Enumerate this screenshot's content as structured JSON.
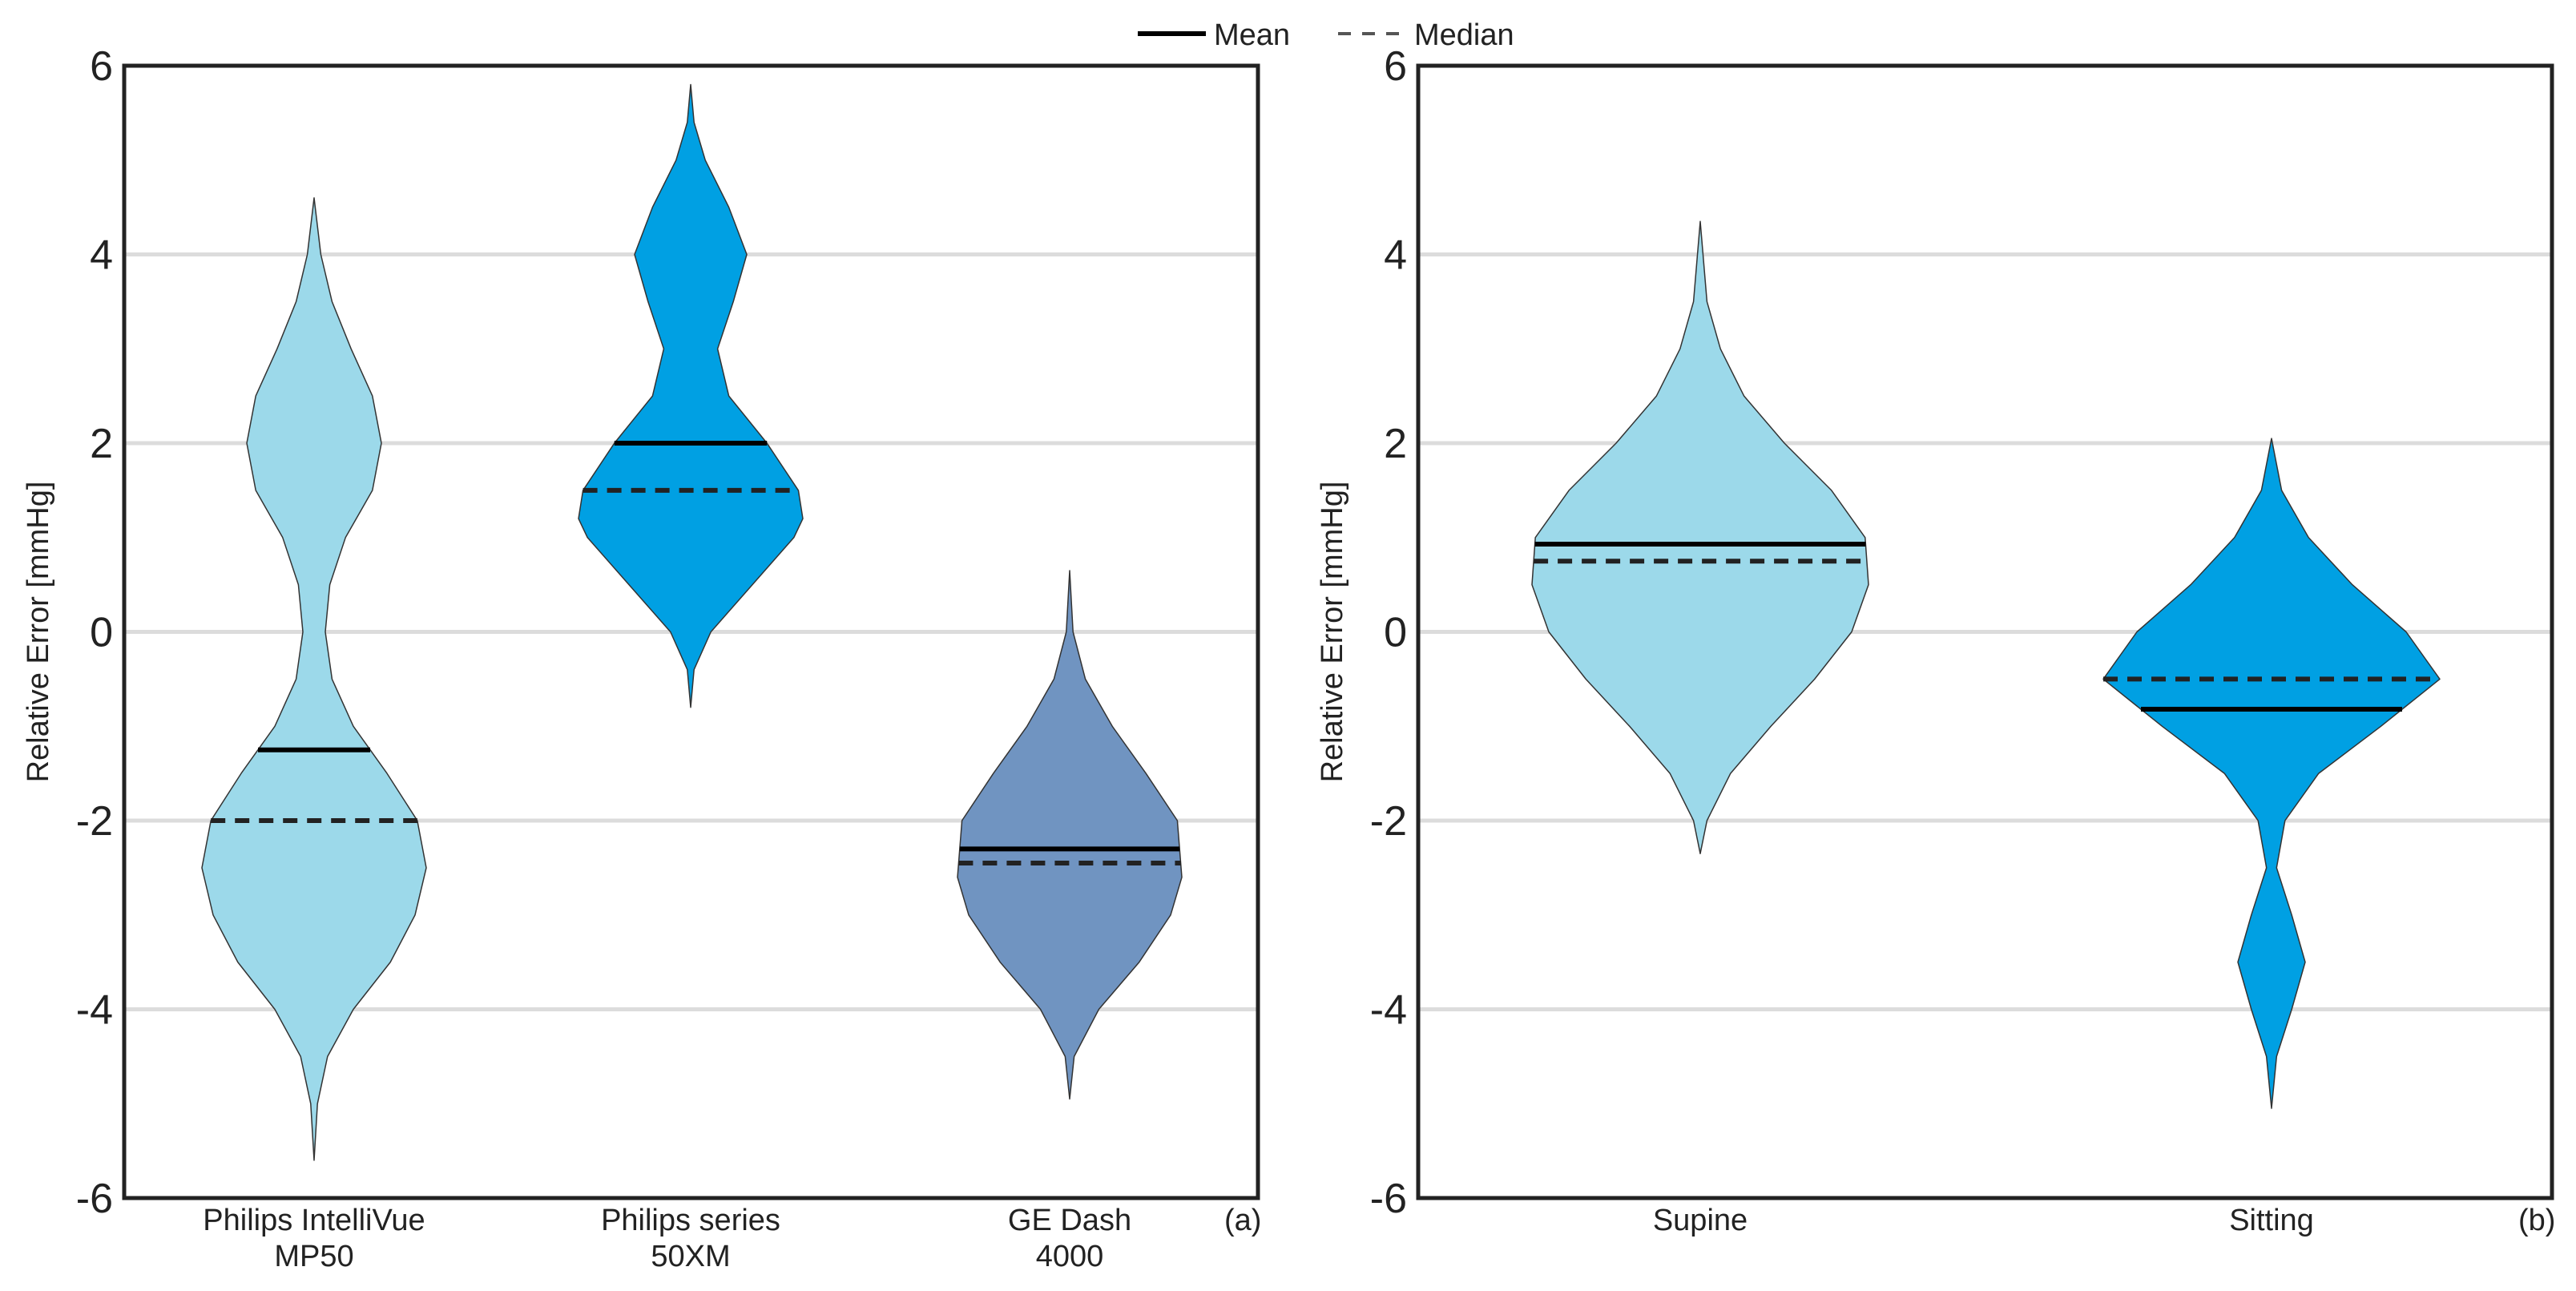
{
  "legend": {
    "mean_label": "Mean",
    "median_label": "Median"
  },
  "chart_data": [
    {
      "type": "violin",
      "panel_label": "(a)",
      "ylabel": "Relative Error [mmHg]",
      "ylim": [
        -6,
        6
      ],
      "yticks": [
        -6,
        -4,
        -2,
        0,
        2,
        4,
        6
      ],
      "grid": true,
      "categories": [
        {
          "lines": [
            "Philips IntelliVue",
            "MP50"
          ],
          "color": "#9cd9ea",
          "range": [
            -5.6,
            4.6
          ],
          "mean": -1.25,
          "median": -2.0,
          "profile": [
            [
              -5.6,
              0.0
            ],
            [
              -5.0,
              0.03
            ],
            [
              -4.5,
              0.12
            ],
            [
              -4.0,
              0.35
            ],
            [
              -3.5,
              0.68
            ],
            [
              -3.0,
              0.9
            ],
            [
              -2.5,
              1.0
            ],
            [
              -2.0,
              0.92
            ],
            [
              -1.5,
              0.65
            ],
            [
              -1.0,
              0.35
            ],
            [
              -0.5,
              0.16
            ],
            [
              0.0,
              0.1
            ],
            [
              0.5,
              0.14
            ],
            [
              1.0,
              0.28
            ],
            [
              1.5,
              0.52
            ],
            [
              2.0,
              0.6
            ],
            [
              2.5,
              0.52
            ],
            [
              3.0,
              0.33
            ],
            [
              3.5,
              0.16
            ],
            [
              4.0,
              0.06
            ],
            [
              4.6,
              0.0
            ]
          ]
        },
        {
          "lines": [
            "Philips series",
            "50XM"
          ],
          "color": "#00a0e3",
          "range": [
            -0.8,
            5.8
          ],
          "mean": 2.0,
          "median": 1.5,
          "profile": [
            [
              -0.8,
              0.0
            ],
            [
              -0.4,
              0.03
            ],
            [
              0.0,
              0.18
            ],
            [
              0.5,
              0.55
            ],
            [
              1.0,
              0.92
            ],
            [
              1.2,
              1.0
            ],
            [
              1.5,
              0.96
            ],
            [
              2.0,
              0.68
            ],
            [
              2.5,
              0.34
            ],
            [
              3.0,
              0.24
            ],
            [
              3.5,
              0.38
            ],
            [
              4.0,
              0.5
            ],
            [
              4.5,
              0.34
            ],
            [
              5.0,
              0.13
            ],
            [
              5.4,
              0.03
            ],
            [
              5.8,
              0.0
            ]
          ]
        },
        {
          "lines": [
            "GE Dash",
            "4000"
          ],
          "color": "#7094c1",
          "range": [
            -4.95,
            0.65
          ],
          "mean": -2.3,
          "median": -2.45,
          "profile": [
            [
              -4.95,
              0.0
            ],
            [
              -4.5,
              0.04
            ],
            [
              -4.0,
              0.26
            ],
            [
              -3.5,
              0.62
            ],
            [
              -3.0,
              0.9
            ],
            [
              -2.6,
              1.0
            ],
            [
              -2.0,
              0.96
            ],
            [
              -1.5,
              0.68
            ],
            [
              -1.0,
              0.38
            ],
            [
              -0.5,
              0.14
            ],
            [
              0.0,
              0.03
            ],
            [
              0.65,
              0.0
            ]
          ]
        }
      ]
    },
    {
      "type": "violin",
      "panel_label": "(b)",
      "ylabel": "Relative Error [mmHg]",
      "ylim": [
        -6,
        6
      ],
      "yticks": [
        -6,
        -4,
        -2,
        0,
        2,
        4,
        6
      ],
      "grid": true,
      "categories": [
        {
          "lines": [
            "Supine"
          ],
          "color": "#9cd9ea",
          "range": [
            -2.35,
            4.35
          ],
          "mean": 0.93,
          "median": 0.75,
          "profile": [
            [
              -2.35,
              0.0
            ],
            [
              -2.0,
              0.04
            ],
            [
              -1.5,
              0.18
            ],
            [
              -1.0,
              0.42
            ],
            [
              -0.5,
              0.68
            ],
            [
              0.0,
              0.9
            ],
            [
              0.5,
              1.0
            ],
            [
              1.0,
              0.98
            ],
            [
              1.5,
              0.78
            ],
            [
              2.0,
              0.5
            ],
            [
              2.5,
              0.26
            ],
            [
              3.0,
              0.12
            ],
            [
              3.5,
              0.04
            ],
            [
              4.35,
              0.0
            ]
          ]
        },
        {
          "lines": [
            "Sitting"
          ],
          "color": "#00a0e3",
          "range": [
            -5.05,
            2.05
          ],
          "mean": -0.82,
          "median": -0.5,
          "profile": [
            [
              -5.05,
              0.0
            ],
            [
              -4.5,
              0.03
            ],
            [
              -4.0,
              0.12
            ],
            [
              -3.5,
              0.2
            ],
            [
              -3.0,
              0.12
            ],
            [
              -2.5,
              0.03
            ],
            [
              -2.0,
              0.08
            ],
            [
              -1.5,
              0.28
            ],
            [
              -1.0,
              0.65
            ],
            [
              -0.5,
              1.0
            ],
            [
              0.0,
              0.8
            ],
            [
              0.5,
              0.48
            ],
            [
              1.0,
              0.22
            ],
            [
              1.5,
              0.06
            ],
            [
              2.05,
              0.0
            ]
          ]
        }
      ]
    }
  ]
}
